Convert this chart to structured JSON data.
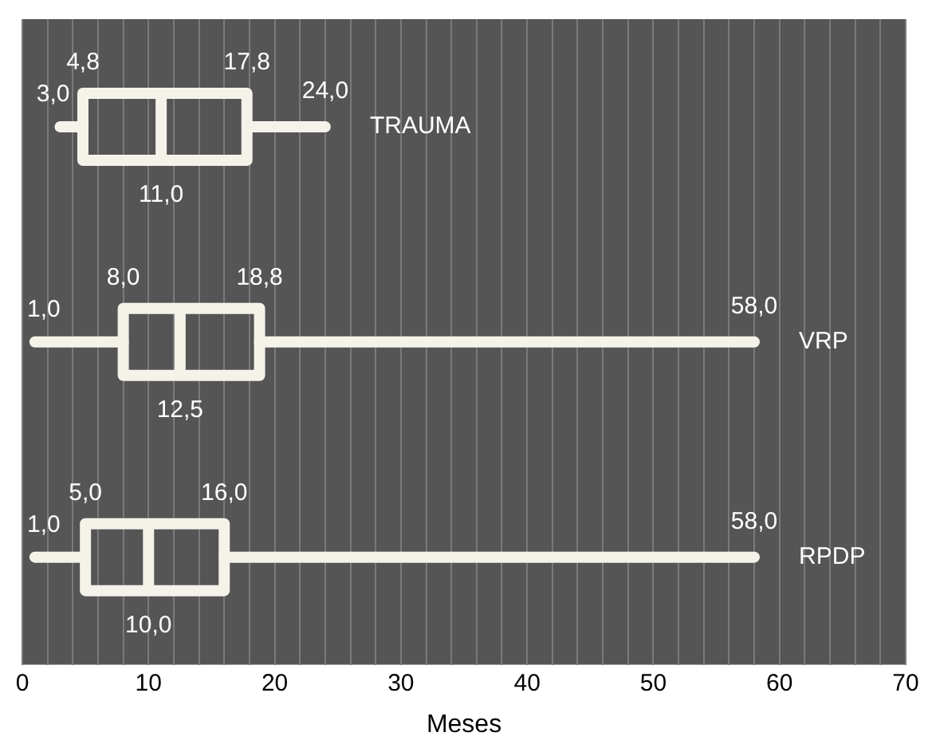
{
  "chart_data": {
    "type": "box",
    "orientation": "horizontal",
    "xlabel": "Meses",
    "categories": [
      "TRAUMA",
      "VRP",
      "RPDP"
    ],
    "boxes": [
      {
        "low": 3.0,
        "q1": 4.8,
        "median": 11.0,
        "q3": 17.8,
        "high": 24.0
      },
      {
        "low": 1.0,
        "q1": 8.0,
        "median": 12.5,
        "q3": 18.8,
        "high": 58.0
      },
      {
        "low": 1.0,
        "q1": 5.0,
        "median": 10.0,
        "q3": 16.0,
        "high": 58.0
      }
    ],
    "color": "#f5f2ea",
    "xlim": [
      0,
      70
    ],
    "xticks": [
      0,
      {
        "value": 2,
        "label": null
      },
      {
        "value": 4,
        "label": null
      },
      {
        "value": 6,
        "label": null
      },
      {
        "value": 8,
        "label": null
      },
      10,
      {
        "value": 12,
        "label": null
      },
      {
        "value": 14,
        "label": null
      },
      {
        "value": 16,
        "label": null
      },
      {
        "value": 18,
        "label": null
      },
      20,
      {
        "value": 22,
        "label": null
      },
      {
        "value": 24,
        "label": null
      },
      {
        "value": 26,
        "label": null
      },
      {
        "value": 28,
        "label": null
      },
      30,
      {
        "value": 32,
        "label": null
      },
      {
        "value": 34,
        "label": null
      },
      {
        "value": 36,
        "label": null
      },
      {
        "value": 38,
        "label": null
      },
      40,
      {
        "value": 42,
        "label": null
      },
      {
        "value": 44,
        "label": null
      },
      {
        "value": 46,
        "label": null
      },
      {
        "value": 48,
        "label": null
      },
      50,
      {
        "value": 52,
        "label": null
      },
      {
        "value": 54,
        "label": null
      },
      {
        "value": 56,
        "label": null
      },
      {
        "value": 58,
        "label": null
      },
      60,
      {
        "value": 62,
        "label": null
      },
      {
        "value": 64,
        "label": null
      },
      {
        "value": 66,
        "label": null
      },
      {
        "value": 68,
        "label": null
      },
      70
    ],
    "grid": "x",
    "tick_labels": "x",
    "annotations": [
      {
        "text": "3,0",
        "x": 3.0,
        "y": "TRAUMA"
      },
      {
        "text": "4,8",
        "x": 4.8,
        "y": "TRAUMA"
      },
      {
        "text": "11,0",
        "x": 11.0,
        "y": "TRAUMA"
      },
      {
        "text": "17,8",
        "x": 17.8,
        "y": "TRAUMA"
      },
      {
        "text": "24,0",
        "x": 24.0,
        "y": "TRAUMA"
      },
      {
        "text": "1,0",
        "x": 1.0,
        "y": "VRP"
      },
      {
        "text": "8,0",
        "x": 8.0,
        "y": "VRP"
      },
      {
        "text": "12,5",
        "x": 12.5,
        "y": "VRP"
      },
      {
        "text": "18,8",
        "x": 18.8,
        "y": "VRP"
      },
      {
        "text": "58,0",
        "x": 58.0,
        "y": "VRP"
      },
      {
        "text": "1,0",
        "x": 1.0,
        "y": "RPDP"
      },
      {
        "text": "5,0",
        "x": 5.0,
        "y": "RPDP"
      },
      {
        "text": "10,0",
        "x": 10.0,
        "y": "RPDP"
      },
      {
        "text": "16,0",
        "x": 16.0,
        "y": "RPDP"
      },
      {
        "text": "58,0",
        "x": 58.0,
        "y": "RPDP"
      }
    ]
  }
}
